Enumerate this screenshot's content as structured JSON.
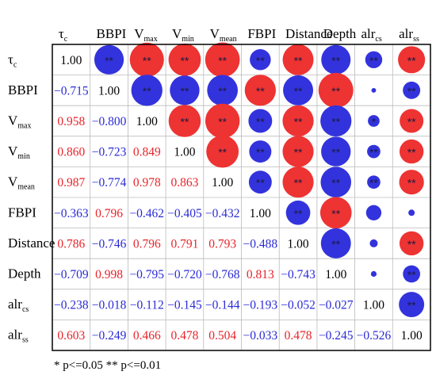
{
  "chart_data": {
    "type": "heatmap",
    "variables": [
      {
        "base": "τ",
        "sub": "c"
      },
      {
        "base": "BBPI",
        "sub": ""
      },
      {
        "base": "V",
        "sub": "max"
      },
      {
        "base": "V",
        "sub": "min"
      },
      {
        "base": "V",
        "sub": "mean"
      },
      {
        "base": "FBPI",
        "sub": ""
      },
      {
        "base": "Distance",
        "sub": ""
      },
      {
        "base": "Depth",
        "sub": ""
      },
      {
        "base": "alr",
        "sub": "cs"
      },
      {
        "base": "alr",
        "sub": "ss"
      }
    ],
    "matrix": [
      [
        "1.00",
        "-0.715",
        "0.958",
        "0.860",
        "0.987",
        "-0.363",
        "0.786",
        "-0.709",
        "-0.238",
        "0.603"
      ],
      [
        "-0.715",
        "1.00",
        "-0.800",
        "-0.723",
        "-0.774",
        "0.796",
        "-0.746",
        "0.998",
        "-0.018",
        "-0.249"
      ],
      [
        "0.958",
        "-0.800",
        "1.00",
        "0.849",
        "0.978",
        "-0.462",
        "0.796",
        "-0.795",
        "-0.112",
        "0.466"
      ],
      [
        "0.860",
        "-0.723",
        "0.849",
        "1.00",
        "0.863",
        "-0.405",
        "0.791",
        "-0.720",
        "-0.145",
        "0.478"
      ],
      [
        "0.987",
        "-0.774",
        "0.978",
        "0.863",
        "1.00",
        "-0.432",
        "0.793",
        "-0.768",
        "-0.144",
        "0.504"
      ],
      [
        "-0.363",
        "0.796",
        "-0.462",
        "-0.405",
        "-0.432",
        "1.00",
        "-0.488",
        "0.813",
        "-0.193",
        "-0.033"
      ],
      [
        "0.786",
        "-0.746",
        "0.796",
        "0.791",
        "0.793",
        "-0.488",
        "1.00",
        "-0.743",
        "-0.052",
        "0.478"
      ],
      [
        "-0.709",
        "0.998",
        "-0.795",
        "-0.720",
        "-0.768",
        "0.813",
        "-0.743",
        "1.00",
        "-0.027",
        "-0.245"
      ],
      [
        "-0.238",
        "-0.018",
        "-0.112",
        "-0.145",
        "-0.144",
        "-0.193",
        "-0.052",
        "-0.027",
        "1.00",
        "-0.526"
      ],
      [
        "0.603",
        "-0.249",
        "0.466",
        "0.478",
        "0.504",
        "-0.033",
        "0.478",
        "-0.245",
        "-0.526",
        "1.00"
      ]
    ],
    "significance": [
      [
        "",
        "**",
        "**",
        "**",
        "**",
        "**",
        "**",
        "**",
        "**",
        "**"
      ],
      [
        "",
        "",
        "**",
        "**",
        "**",
        "**",
        "**",
        "**",
        "",
        "**"
      ],
      [
        "",
        "",
        "",
        "**",
        "**",
        "**",
        "**",
        "**",
        "*",
        "**"
      ],
      [
        "",
        "",
        "",
        "",
        "**",
        "**",
        "**",
        "**",
        "**",
        "**"
      ],
      [
        "",
        "",
        "",
        "",
        "",
        "**",
        "**",
        "**",
        "**",
        "**"
      ],
      [
        "",
        "",
        "",
        "",
        "",
        "",
        "**",
        "**",
        "",
        ""
      ],
      [
        "",
        "",
        "",
        "",
        "",
        "",
        "",
        "**",
        "",
        "**"
      ],
      [
        "",
        "",
        "",
        "",
        "",
        "",
        "",
        "",
        "",
        "**"
      ],
      [
        "",
        "",
        "",
        "",
        "",
        "",
        "",
        "",
        "",
        "**"
      ],
      [
        "",
        "",
        "",
        "",
        "",
        "",
        "",
        "",
        "",
        ""
      ]
    ],
    "colors": {
      "positive": "#ee3333",
      "negative": "#3333dd",
      "text_positive": "#e8232a",
      "text_negative": "#2a2ad6",
      "diagonal": "#000000",
      "grid": "#bbbbbb",
      "border": "#000000"
    },
    "layout": "lower triangle shows correlation coefficients as text; upper triangle shows circles sized by |r| and colored by sign",
    "footnote": "* p<=0.05  ** p<=0.01"
  }
}
